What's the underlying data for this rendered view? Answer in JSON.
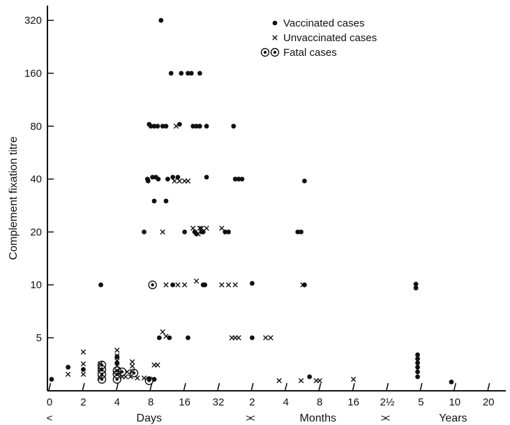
{
  "chart_data": {
    "type": "scatter",
    "title": "",
    "ylabel": "Complement fixation titre",
    "yscale": "log2",
    "ylim": [
      2.5,
      400
    ],
    "yticks": [
      {
        "value": 5,
        "label": "5"
      },
      {
        "value": 10,
        "label": "10"
      },
      {
        "value": 20,
        "label": "20"
      },
      {
        "value": 40,
        "label": "40"
      },
      {
        "value": 80,
        "label": "80"
      },
      {
        "value": 160,
        "label": "160"
      },
      {
        "value": 320,
        "label": "320"
      }
    ],
    "x_domain": [
      0,
      14
    ],
    "xticks": [
      {
        "x": 0,
        "label": "0"
      },
      {
        "x": 1,
        "label": "2"
      },
      {
        "x": 2,
        "label": "4"
      },
      {
        "x": 3,
        "label": "8"
      },
      {
        "x": 4,
        "label": "16"
      },
      {
        "x": 5,
        "label": "32"
      },
      {
        "x": 6,
        "label": "2"
      },
      {
        "x": 7,
        "label": "4"
      },
      {
        "x": 8,
        "label": "8"
      },
      {
        "x": 9,
        "label": "16"
      },
      {
        "x": 10,
        "label": "2½"
      },
      {
        "x": 11,
        "label": "5"
      },
      {
        "x": 12,
        "label": "10"
      },
      {
        "x": 13,
        "label": "20"
      }
    ],
    "x_groups": [
      {
        "label": "Days",
        "from": 0,
        "to": 5.9
      },
      {
        "label": "Months",
        "from": 6,
        "to": 9.9
      },
      {
        "label": "Years",
        "from": 10,
        "to": 13.9
      }
    ],
    "below_scale_level": 2.9,
    "legend": {
      "position": "top-right",
      "entries": [
        {
          "marker": "dot",
          "label": "Vaccinated cases"
        },
        {
          "marker": "cross",
          "label": "Unvaccinated cases"
        },
        {
          "marker": "fatal",
          "label": "Fatal cases"
        }
      ]
    },
    "series": [
      {
        "name": "Vaccinated cases",
        "marker": "dot",
        "points": [
          [
            0.06,
            2.9
          ],
          [
            0.55,
            3.4
          ],
          [
            1.0,
            3.3
          ],
          [
            1.52,
            10
          ],
          [
            2.0,
            3.9
          ],
          [
            2.0,
            3.6
          ],
          [
            2.95,
            2.9
          ],
          [
            3.1,
            2.9
          ],
          [
            2.8,
            20
          ],
          [
            2.9,
            40
          ],
          [
            2.92,
            39
          ],
          [
            2.95,
            82
          ],
          [
            3.0,
            80
          ],
          [
            3.05,
            41
          ],
          [
            3.1,
            80
          ],
          [
            3.1,
            30
          ],
          [
            3.15,
            41
          ],
          [
            3.2,
            80
          ],
          [
            3.22,
            40
          ],
          [
            3.25,
            5
          ],
          [
            3.3,
            320
          ],
          [
            3.35,
            80
          ],
          [
            3.45,
            80
          ],
          [
            3.45,
            30
          ],
          [
            3.5,
            40
          ],
          [
            3.55,
            5
          ],
          [
            3.6,
            160
          ],
          [
            3.65,
            10
          ],
          [
            3.65,
            41
          ],
          [
            3.8,
            41
          ],
          [
            3.85,
            82
          ],
          [
            3.9,
            160
          ],
          [
            4.0,
            20
          ],
          [
            4.1,
            160
          ],
          [
            4.1,
            5
          ],
          [
            4.2,
            160
          ],
          [
            4.25,
            80
          ],
          [
            4.3,
            20
          ],
          [
            4.3,
            20
          ],
          [
            4.35,
            19.5
          ],
          [
            4.35,
            80
          ],
          [
            4.45,
            80
          ],
          [
            4.45,
            160
          ],
          [
            4.5,
            20
          ],
          [
            4.55,
            10
          ],
          [
            4.55,
            20
          ],
          [
            4.6,
            10
          ],
          [
            4.65,
            80
          ],
          [
            4.65,
            41
          ],
          [
            5.2,
            20
          ],
          [
            5.3,
            20
          ],
          [
            5.45,
            80
          ],
          [
            5.5,
            40
          ],
          [
            5.6,
            40
          ],
          [
            5.7,
            40
          ],
          [
            6.0,
            10.2
          ],
          [
            6.0,
            5
          ],
          [
            7.35,
            20
          ],
          [
            7.45,
            20
          ],
          [
            7.55,
            10
          ],
          [
            7.55,
            39
          ],
          [
            7.7,
            3.0
          ],
          [
            10.85,
            9.6
          ],
          [
            10.85,
            10.1
          ],
          [
            10.9,
            3.0
          ],
          [
            10.9,
            3.2
          ],
          [
            10.9,
            3.4
          ],
          [
            10.9,
            3.6
          ],
          [
            10.9,
            3.8
          ],
          [
            10.9,
            4.0
          ],
          [
            11.9,
            2.8
          ]
        ]
      },
      {
        "name": "Unvaccinated cases",
        "marker": "cross",
        "points": [
          [
            0.55,
            3.1
          ],
          [
            1.0,
            3.1
          ],
          [
            1.0,
            3.55
          ],
          [
            1.0,
            4.15
          ],
          [
            1.5,
            2.95
          ],
          [
            1.5,
            3.3
          ],
          [
            1.5,
            3.55
          ],
          [
            2.0,
            3.25
          ],
          [
            2.0,
            3.45
          ],
          [
            2.0,
            3.7
          ],
          [
            2.0,
            3.95
          ],
          [
            2.0,
            4.25
          ],
          [
            2.15,
            3.0
          ],
          [
            2.25,
            3.0
          ],
          [
            2.3,
            3.2
          ],
          [
            2.4,
            3.0
          ],
          [
            2.45,
            3.2
          ],
          [
            2.45,
            3.45
          ],
          [
            2.45,
            3.65
          ],
          [
            2.6,
            2.95
          ],
          [
            2.8,
            2.95
          ],
          [
            3.1,
            3.5
          ],
          [
            3.2,
            3.5
          ],
          [
            3.35,
            5.4
          ],
          [
            3.35,
            20
          ],
          [
            3.45,
            5.1
          ],
          [
            3.45,
            10
          ],
          [
            3.7,
            39
          ],
          [
            3.75,
            80
          ],
          [
            3.8,
            10
          ],
          [
            3.85,
            39
          ],
          [
            4.0,
            39
          ],
          [
            4.0,
            10
          ],
          [
            4.1,
            39
          ],
          [
            4.25,
            21
          ],
          [
            4.35,
            10.5
          ],
          [
            4.4,
            19.5
          ],
          [
            4.45,
            21
          ],
          [
            4.5,
            21
          ],
          [
            4.65,
            21
          ],
          [
            5.1,
            21
          ],
          [
            5.1,
            10
          ],
          [
            5.25,
            20
          ],
          [
            5.3,
            10
          ],
          [
            5.4,
            5
          ],
          [
            5.5,
            5
          ],
          [
            5.5,
            10
          ],
          [
            5.55,
            40
          ],
          [
            5.6,
            5
          ],
          [
            6.4,
            5
          ],
          [
            6.55,
            5
          ],
          [
            6.8,
            2.85
          ],
          [
            7.45,
            2.85
          ],
          [
            7.5,
            10
          ],
          [
            7.9,
            2.85
          ],
          [
            8.0,
            2.85
          ],
          [
            9.0,
            2.9
          ]
        ]
      },
      {
        "name": "Fatal cases",
        "marker": "fatal",
        "points": [
          [
            1.55,
            2.9
          ],
          [
            1.55,
            3.1
          ],
          [
            1.55,
            3.3
          ],
          [
            1.55,
            3.5
          ],
          [
            2.0,
            2.9
          ],
          [
            2.0,
            3.1
          ],
          [
            2.0,
            3.25
          ],
          [
            2.15,
            3.2
          ],
          [
            2.5,
            3.15
          ],
          [
            2.95,
            2.85
          ],
          [
            3.05,
            10
          ]
        ]
      }
    ]
  }
}
